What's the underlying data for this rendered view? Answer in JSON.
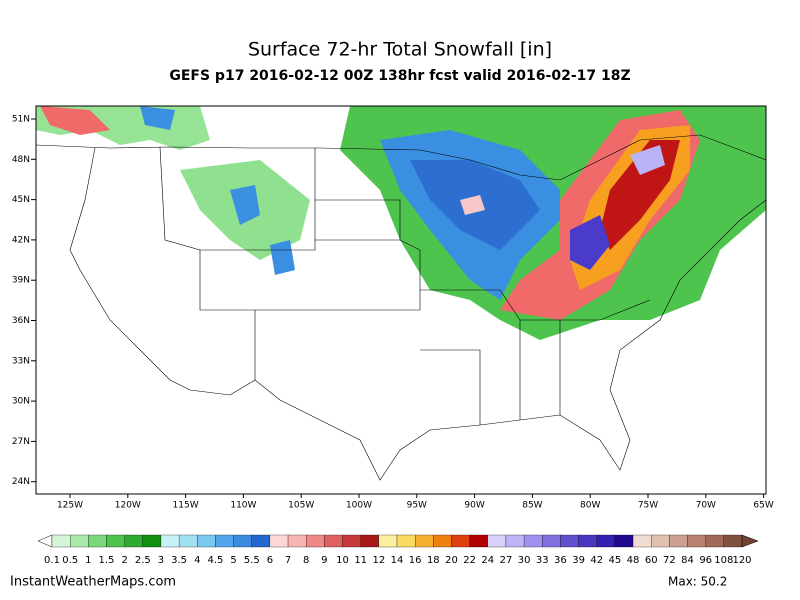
{
  "header": {
    "title": "Surface 72-hr Total Snowfall [in]",
    "subtitle": "GEFS p17 2016-02-12 00Z 138hr fcst valid 2016-02-17 18Z"
  },
  "lat_labels": [
    "51N",
    "48N",
    "45N",
    "42N",
    "39N",
    "36N",
    "33N",
    "30N",
    "27N",
    "24N"
  ],
  "lon_labels": [
    "125W",
    "120W",
    "115W",
    "110W",
    "105W",
    "100W",
    "95W",
    "90W",
    "85W",
    "80W",
    "75W",
    "70W",
    "65W"
  ],
  "colorbar": {
    "labels": [
      "0.1",
      "0.5",
      "1",
      "1.5",
      "2",
      "2.5",
      "3",
      "3.5",
      "4",
      "4.5",
      "5",
      "5.5",
      "6",
      "7",
      "8",
      "9",
      "10",
      "11",
      "12",
      "14",
      "16",
      "18",
      "20",
      "22",
      "24",
      "27",
      "30",
      "33",
      "36",
      "39",
      "42",
      "45",
      "48",
      "60",
      "72",
      "84",
      "96",
      "108",
      "120"
    ]
  },
  "footer": {
    "site": "InstantWeatherMaps.com",
    "max": "Max:  50.2"
  }
}
